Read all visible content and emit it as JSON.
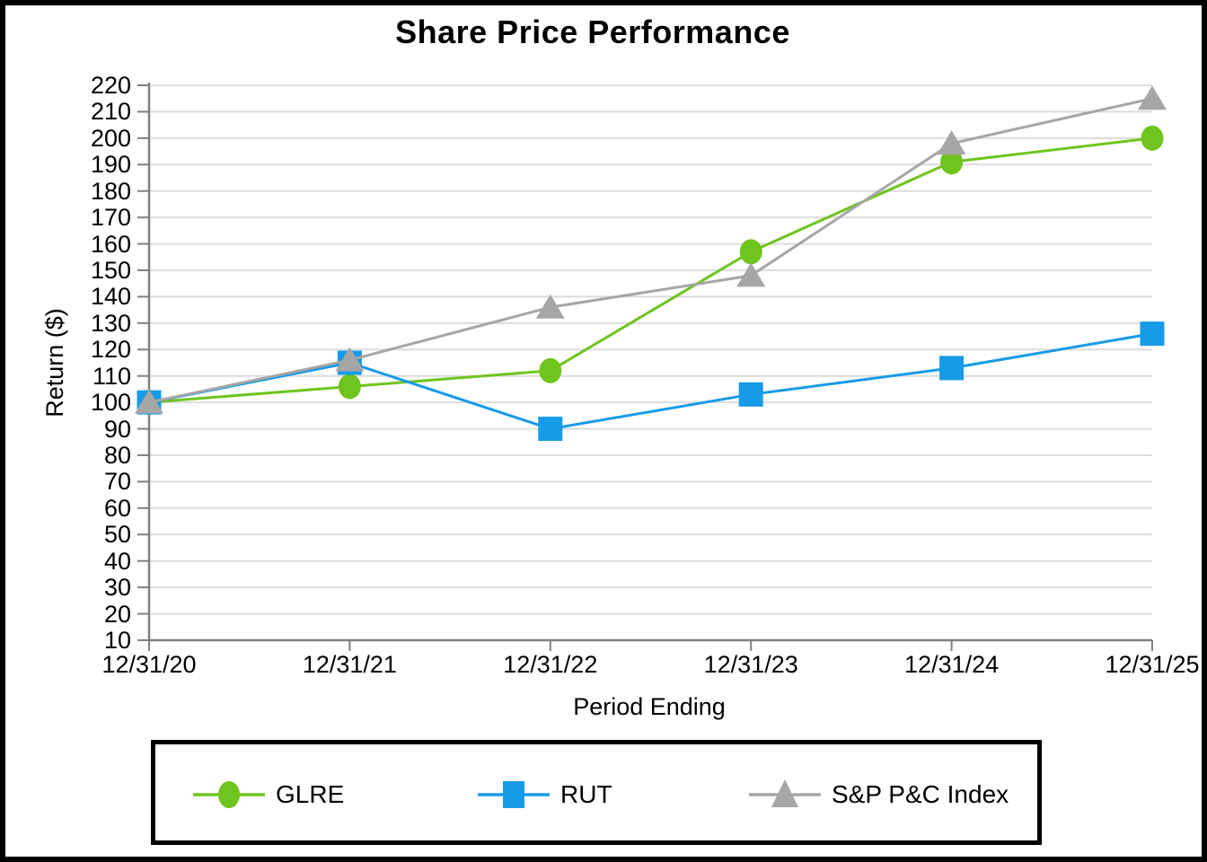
{
  "chart_data": {
    "type": "line",
    "title": "Share Price Performance",
    "xlabel": "Period Ending",
    "ylabel": "Return ($)",
    "categories": [
      "12/31/20",
      "12/31/21",
      "12/31/22",
      "12/31/23",
      "12/31/24",
      "12/31/25"
    ],
    "series": [
      {
        "name": "GLRE",
        "marker": "circle",
        "color": "#6FC41E",
        "values": [
          100,
          106,
          112,
          157,
          191,
          200
        ]
      },
      {
        "name": "RUT",
        "marker": "square",
        "color": "#169BE8",
        "values": [
          100,
          115,
          90,
          103,
          113,
          126
        ]
      },
      {
        "name": "S&P P&C Index",
        "marker": "triangle",
        "color": "#A6A6A6",
        "values": [
          100,
          116,
          136,
          148,
          198,
          215
        ]
      }
    ],
    "ylim": [
      10,
      220
    ],
    "yticks": [
      10,
      20,
      30,
      40,
      50,
      60,
      70,
      80,
      90,
      100,
      110,
      120,
      130,
      140,
      150,
      160,
      170,
      180,
      190,
      200,
      210,
      220
    ],
    "grid": true,
    "legend_position": "bottom",
    "colors": {
      "gridline": "#DCDCDC",
      "axis": "#808080",
      "text": "#000000",
      "background": "#FFFFFF"
    }
  }
}
